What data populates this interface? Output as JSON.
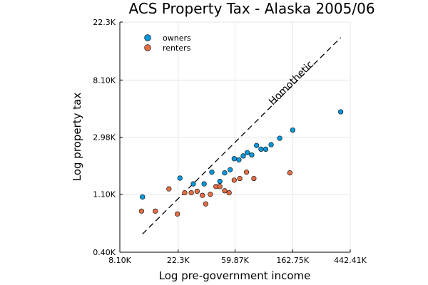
{
  "chart_data": {
    "type": "scatter",
    "title": "ACS Property Tax - Alaska 2005/06",
    "xlabel": "Log pre-government income",
    "ylabel": "Log property tax",
    "x_scale": "log",
    "y_scale": "log",
    "xlim": [
      8100,
      442410
    ],
    "ylim": [
      400,
      22300
    ],
    "x_ticks": [
      8100,
      22300,
      59870,
      162750,
      442410
    ],
    "x_tick_labels": [
      "8.10K",
      "22.3K",
      "59.87K",
      "162.75K",
      "442.41K"
    ],
    "y_ticks": [
      400,
      1100,
      2980,
      8100,
      22300
    ],
    "y_tick_labels": [
      "0.40K",
      "1.10K",
      "2.98K",
      "8.10K",
      "22.3K"
    ],
    "grid": true,
    "legend_position": "top-left",
    "series": [
      {
        "name": "owners",
        "color": "#0a97db",
        "points": [
          [
            12000,
            1050
          ],
          [
            23000,
            1460
          ],
          [
            29000,
            1320
          ],
          [
            35000,
            1320
          ],
          [
            40000,
            1620
          ],
          [
            46000,
            1380
          ],
          [
            50000,
            1600
          ],
          [
            55000,
            1690
          ],
          [
            59000,
            2050
          ],
          [
            64000,
            2010
          ],
          [
            69000,
            2150
          ],
          [
            74000,
            2280
          ],
          [
            80000,
            2190
          ],
          [
            87000,
            2580
          ],
          [
            94000,
            2420
          ],
          [
            102000,
            2420
          ],
          [
            112000,
            2620
          ],
          [
            130000,
            2930
          ],
          [
            163000,
            3380
          ],
          [
            375000,
            4650
          ]
        ]
      },
      {
        "name": "renters",
        "color": "#e26f46",
        "points": [
          [
            11800,
            820
          ],
          [
            15000,
            820
          ],
          [
            19000,
            1210
          ],
          [
            22000,
            780
          ],
          [
            25000,
            1130
          ],
          [
            28000,
            1130
          ],
          [
            31000,
            1160
          ],
          [
            34000,
            1080
          ],
          [
            36000,
            930
          ],
          [
            39000,
            1100
          ],
          [
            43000,
            1260
          ],
          [
            46000,
            1260
          ],
          [
            50000,
            1170
          ],
          [
            54000,
            1130
          ],
          [
            59000,
            1410
          ],
          [
            65000,
            1450
          ],
          [
            73000,
            1620
          ],
          [
            83000,
            1450
          ],
          [
            155000,
            1600
          ]
        ]
      }
    ],
    "reference_line": {
      "label": "Homothetic",
      "x": [
        12000,
        375000
      ],
      "y": [
        550,
        17000
      ]
    }
  }
}
